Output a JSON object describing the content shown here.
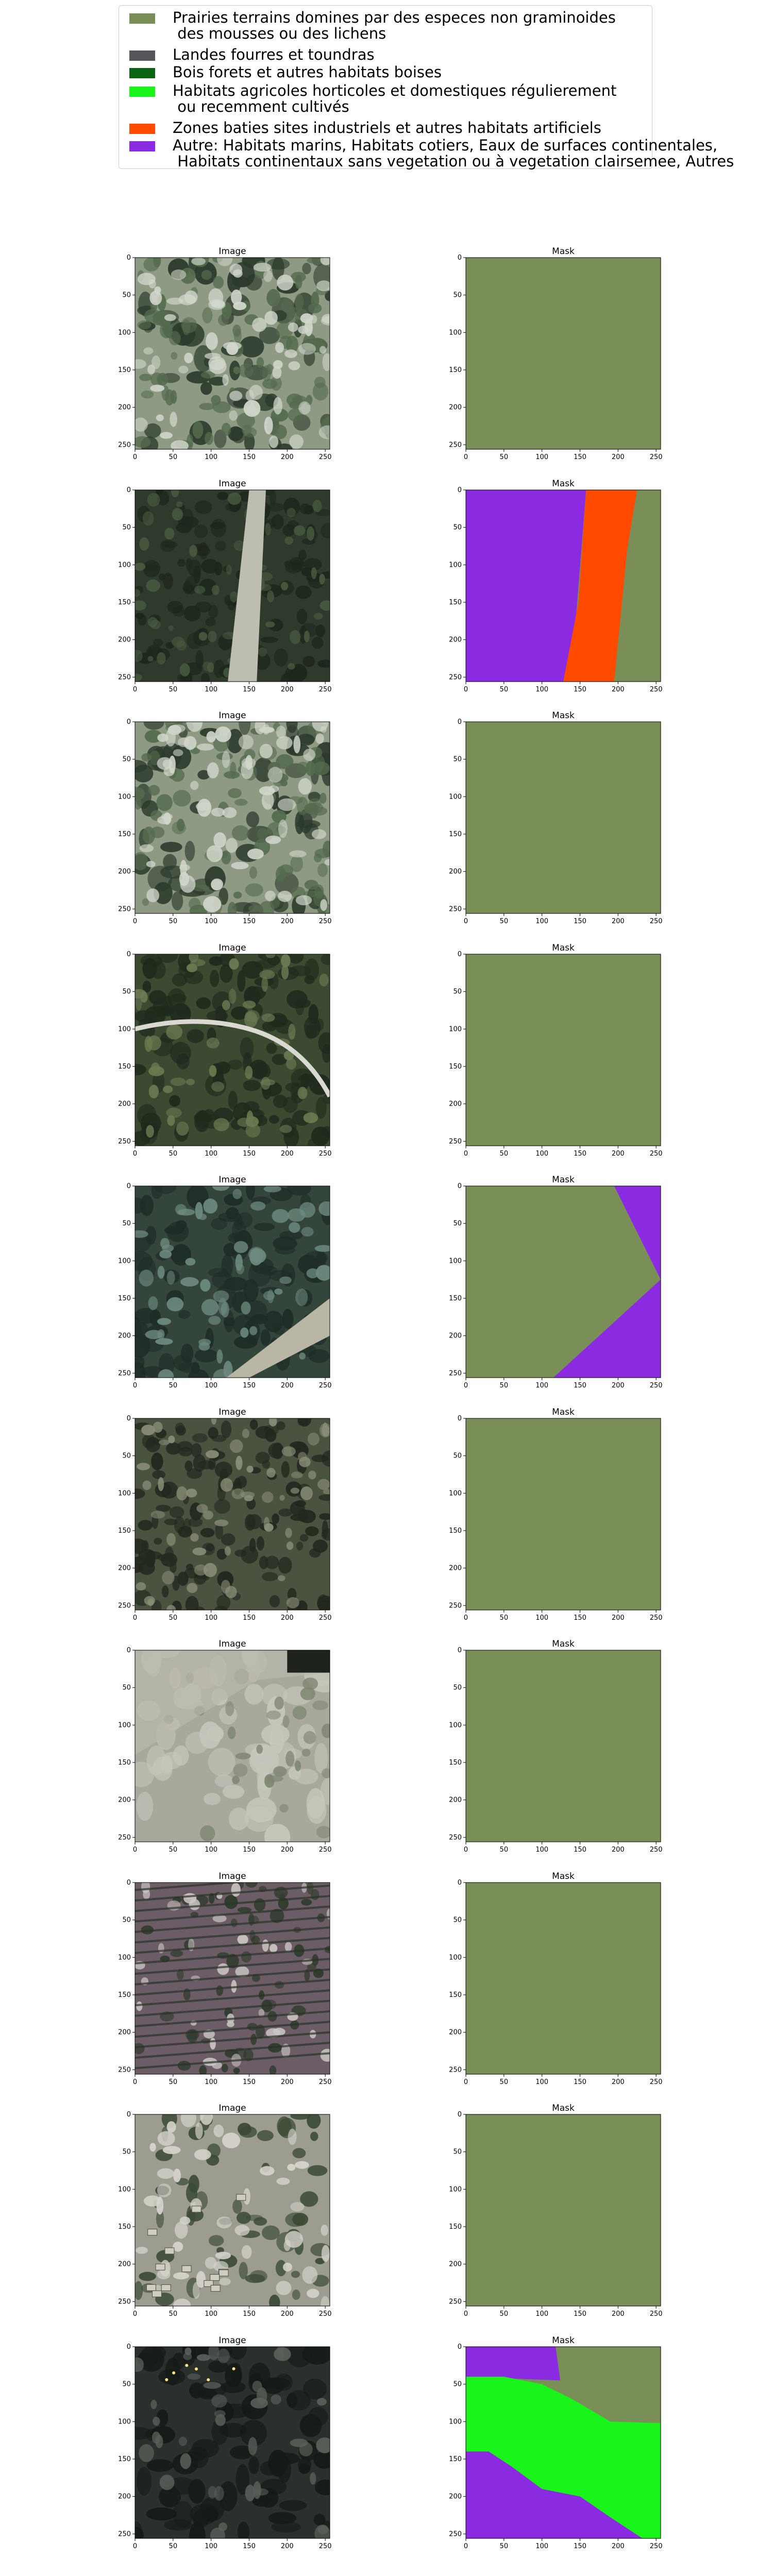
{
  "legend": {
    "items": [
      {
        "label": "Prairies terrains domines par des especes non graminoides\n des mousses ou des lichens",
        "color": "#7a8f58",
        "lines": 2
      },
      {
        "label": "Landes fourres et toundras",
        "color": "#55565b",
        "lines": 1
      },
      {
        "label": "Bois forets et autres habitats boises",
        "color": "#0a6414",
        "lines": 1
      },
      {
        "label": "Habitats agricoles horticoles et domestiques régulierement\n ou recemment cultivés",
        "color": "#19f51b",
        "lines": 2
      },
      {
        "label": "Zones baties sites industriels et autres habitats artificiels",
        "color": "#ff4a00",
        "lines": 1
      },
      {
        "label": "Autre: Habitats marins, Habitats cotiers, Eaux de surfaces continentales,\n Habitats continentaux sans vegetation ou à vegetation clairsemee, Autres",
        "color": "#8a2be2",
        "lines": 2
      }
    ]
  },
  "panels": {
    "image_title": "Image",
    "mask_title": "Mask",
    "x_ticks": [
      "0",
      "50",
      "100",
      "150",
      "200",
      "250"
    ],
    "y_ticks": [
      "0",
      "50",
      "100",
      "150",
      "200",
      "250"
    ],
    "axis_range": [
      0,
      256
    ]
  },
  "colors": {
    "prairies": "#7a8f58",
    "agricole": "#19f51b",
    "batie": "#ff4a00",
    "autre": "#8a2be2"
  },
  "rows": [
    {
      "image_style": "sparse-shrubs",
      "mask": []
    },
    {
      "image_style": "forest-path",
      "mask": [
        {
          "class": "autre",
          "poly": [
            [
              0,
              0
            ],
            [
              158,
              0
            ],
            [
              138,
              256
            ],
            [
              0,
              256
            ]
          ]
        },
        {
          "class": "batie",
          "poly": [
            [
              158,
              0
            ],
            [
              225,
              0
            ],
            [
              212,
              80
            ],
            [
              195,
              256
            ],
            [
              128,
              256
            ],
            [
              148,
              150
            ]
          ]
        },
        {
          "class": "prairies",
          "poly": [
            [
              225,
              0
            ],
            [
              256,
              0
            ],
            [
              256,
              256
            ],
            [
              195,
              256
            ],
            [
              212,
              80
            ]
          ]
        }
      ]
    },
    {
      "image_style": "sparse-shrubs",
      "mask": []
    },
    {
      "image_style": "forest-track",
      "mask": []
    },
    {
      "image_style": "forest-road",
      "mask": [
        {
          "class": "autre",
          "poly": [
            [
              195,
              0
            ],
            [
              256,
              0
            ],
            [
              256,
              125
            ]
          ]
        },
        {
          "class": "autre",
          "poly": [
            [
              256,
              125
            ],
            [
              256,
              256
            ],
            [
              115,
              256
            ]
          ]
        }
      ]
    },
    {
      "image_style": "dense-forest",
      "mask": []
    },
    {
      "image_style": "field",
      "mask": []
    },
    {
      "image_style": "vineyard",
      "mask": []
    },
    {
      "image_style": "village",
      "mask": []
    },
    {
      "image_style": "dark",
      "mask": [
        {
          "class": "autre",
          "poly": [
            [
              0,
              0
            ],
            [
              118,
              0
            ],
            [
              124,
              45
            ],
            [
              0,
              40
            ]
          ]
        },
        {
          "class": "agricole",
          "poly": [
            [
              0,
              40
            ],
            [
              50,
              40
            ],
            [
              100,
              50
            ],
            [
              140,
              70
            ],
            [
              190,
              100
            ],
            [
              256,
              102
            ],
            [
              256,
              256
            ],
            [
              232,
              256
            ],
            [
              190,
              228
            ],
            [
              150,
              200
            ],
            [
              100,
              190
            ],
            [
              60,
              160
            ],
            [
              30,
              140
            ],
            [
              0,
              140
            ]
          ]
        },
        {
          "class": "autre",
          "poly": [
            [
              0,
              140
            ],
            [
              30,
              140
            ],
            [
              60,
              160
            ],
            [
              100,
              190
            ],
            [
              150,
              200
            ],
            [
              190,
              228
            ],
            [
              232,
              256
            ],
            [
              0,
              256
            ]
          ]
        }
      ]
    }
  ]
}
